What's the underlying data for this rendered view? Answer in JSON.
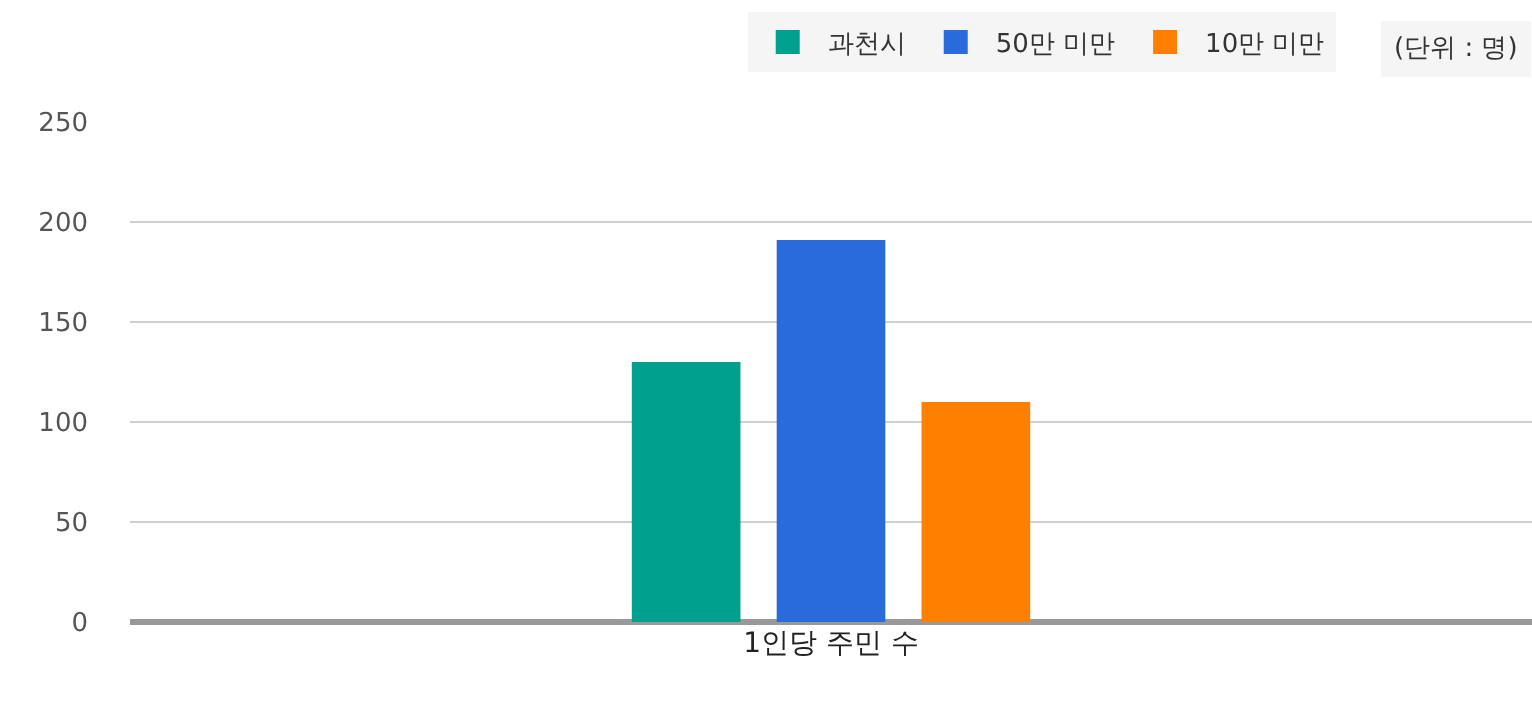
{
  "chart_data": {
    "type": "bar",
    "categories": [
      "1인당 주민 수"
    ],
    "series": [
      {
        "name": "과천시",
        "color": "#00a08e",
        "values": [
          130
        ]
      },
      {
        "name": "50만 미만",
        "color": "#2a6bdc",
        "values": [
          191
        ]
      },
      {
        "name": "10만 미만",
        "color": "#ff7f00",
        "values": [
          110
        ]
      }
    ],
    "ylim": [
      0,
      250
    ],
    "yticks": [
      0,
      50,
      100,
      150,
      200,
      250
    ],
    "grid": "y",
    "legend": "top right",
    "annotations": [
      "(단위 : 명)"
    ]
  }
}
